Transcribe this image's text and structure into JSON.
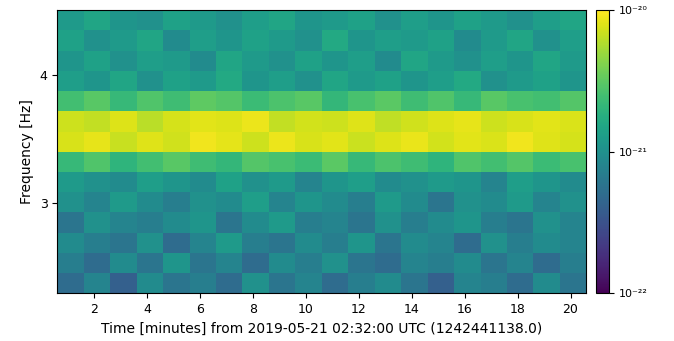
{
  "chart_data": {
    "type": "heatmap",
    "x_label": "Time [minutes] from 2019-05-21 02:32:00 UTC (1242441138.0)",
    "y_label": "Frequency [Hz]",
    "xlim": [
      0.6,
      20.6
    ],
    "xticks": [
      2,
      4,
      6,
      8,
      10,
      12,
      14,
      16,
      18,
      20
    ],
    "ylim": [
      2.3,
      4.5
    ],
    "yticks": [
      3,
      4
    ],
    "x_edges": [
      0.6,
      1.6,
      2.6,
      3.6,
      4.6,
      5.6,
      6.6,
      7.6,
      8.6,
      9.6,
      10.6,
      11.6,
      12.6,
      13.6,
      14.6,
      15.6,
      16.6,
      17.6,
      18.6,
      19.6,
      20.6
    ],
    "y_edges": [
      2.3,
      2.457,
      2.614,
      2.771,
      2.929,
      3.086,
      3.243,
      3.4,
      3.557,
      3.714,
      3.871,
      4.029,
      4.186,
      4.343,
      4.5
    ],
    "cells": [
      [
        5e-22,
        8e-22,
        4e-22,
        9e-22,
        6e-22,
        7e-22,
        5e-22,
        1e-21,
        6e-22,
        8e-22,
        5e-22,
        7e-22,
        9e-22,
        6e-22,
        4e-22,
        8e-22,
        7e-22,
        5e-22,
        9e-22,
        6e-22
      ],
      [
        7e-22,
        5e-22,
        9e-22,
        6e-22,
        1.1e-21,
        6e-22,
        8e-22,
        5e-22,
        9e-22,
        7e-22,
        1e-21,
        6e-22,
        5e-22,
        8e-22,
        7e-22,
        9e-22,
        6e-22,
        8e-22,
        5e-22,
        7e-22
      ],
      [
        9e-22,
        7e-22,
        6e-22,
        1e-21,
        5e-22,
        8e-22,
        1.2e-21,
        7e-22,
        6e-22,
        9e-22,
        7e-22,
        1.1e-21,
        6e-22,
        9e-22,
        8e-22,
        5e-22,
        1e-21,
        7e-22,
        9e-22,
        8e-22
      ],
      [
        6e-22,
        1e-21,
        8e-22,
        7e-22,
        9e-22,
        1.1e-21,
        6e-22,
        9e-22,
        1.2e-21,
        7e-22,
        8e-22,
        6e-22,
        1e-21,
        7e-22,
        9e-22,
        1.1e-21,
        7e-22,
        6e-22,
        1e-21,
        8e-22
      ],
      [
        1e-21,
        8e-22,
        1.2e-21,
        9e-22,
        7e-22,
        1e-21,
        9e-22,
        1.3e-21,
        8e-22,
        1.1e-21,
        9e-22,
        7e-22,
        1.2e-21,
        9e-22,
        6e-22,
        1e-21,
        9e-22,
        1.2e-21,
        8e-22,
        1e-21
      ],
      [
        1.2e-21,
        1e-21,
        9e-22,
        1.3e-21,
        1.1e-21,
        9e-22,
        1.4e-21,
        1e-21,
        1.2e-21,
        8e-22,
        1.1e-21,
        1.3e-21,
        9e-22,
        1e-21,
        1.2e-21,
        1.1e-21,
        8e-22,
        1.3e-21,
        1.1e-21,
        9e-22
      ],
      [
        2.2e-21,
        2.8e-21,
        2e-21,
        2.5e-21,
        3e-21,
        2.4e-21,
        2.1e-21,
        2.9e-21,
        2.6e-21,
        2.3e-21,
        3.1e-21,
        2.2e-21,
        2.7e-21,
        2.4e-21,
        2e-21,
        2.8e-21,
        2.5e-21,
        2.9e-21,
        2.3e-21,
        2.6e-21
      ],
      [
        7.5e-21,
        8.5e-21,
        6.8e-21,
        8e-21,
        7.2e-21,
        9e-21,
        8.3e-21,
        7e-21,
        8.8e-21,
        7.6e-21,
        8.1e-21,
        6.9e-21,
        7.8e-21,
        8.6e-21,
        7.3e-21,
        8.2e-21,
        7.7e-21,
        9.1e-21,
        8e-21,
        7.4e-21
      ],
      [
        7e-21,
        6.5e-21,
        7.8e-21,
        6.2e-21,
        7.4e-21,
        8.1e-21,
        7.9e-21,
        8.7e-21,
        6.6e-21,
        7.3e-21,
        7e-21,
        8e-21,
        6.4e-21,
        7.2e-21,
        7.9e-21,
        8.5e-21,
        7.1e-21,
        7.6e-21,
        8.2e-21,
        7.7e-21
      ],
      [
        2.5e-21,
        3e-21,
        2.2e-21,
        2.8e-21,
        2.4e-21,
        3.2e-21,
        2.9e-21,
        2.3e-21,
        2.7e-21,
        3e-21,
        2.1e-21,
        2.6e-21,
        3.1e-21,
        2.4e-21,
        2.8e-21,
        2.2e-21,
        3e-21,
        2.6e-21,
        2.5e-21,
        2.9e-21
      ],
      [
        1.3e-21,
        1.1e-21,
        1.5e-21,
        1e-21,
        1.4e-21,
        1.2e-21,
        1.6e-21,
        1.1e-21,
        1.3e-21,
        1e-21,
        1.5e-21,
        1.2e-21,
        1.4e-21,
        1.1e-21,
        1.3e-21,
        1.6e-21,
        1e-21,
        1.2e-21,
        1.4e-21,
        1.1e-21
      ],
      [
        1.1e-21,
        1.4e-21,
        1e-21,
        1.3e-21,
        1.2e-21,
        9e-22,
        1.5e-21,
        1.2e-21,
        1e-21,
        1.4e-21,
        1.1e-21,
        1.3e-21,
        9e-22,
        1.5e-21,
        1.2e-21,
        1e-21,
        1.3e-21,
        1.1e-21,
        1.5e-21,
        1.2e-21
      ],
      [
        1.4e-21,
        1e-21,
        1.2e-21,
        1.5e-21,
        9e-22,
        1.3e-21,
        1.1e-21,
        1.4e-21,
        1.2e-21,
        1e-21,
        1.6e-21,
        1.1e-21,
        1.3e-21,
        1.2e-21,
        1.4e-21,
        9e-22,
        1.2e-21,
        1.5e-21,
        1e-21,
        1.3e-21
      ],
      [
        1.2e-21,
        1.5e-21,
        1.1e-21,
        1e-21,
        1.4e-21,
        1.2e-21,
        1e-21,
        1.3e-21,
        1.5e-21,
        1.1e-21,
        1.2e-21,
        1.4e-21,
        1e-21,
        1.3e-21,
        1.1e-21,
        1.4e-21,
        1.2e-21,
        1e-21,
        1.3e-21,
        1.5e-21
      ]
    ],
    "colorbar_lim": [
      1e-22,
      1e-20
    ],
    "colorbar_ticks": [
      {
        "value": 1e-22,
        "label": "10⁻²²"
      },
      {
        "value": 1e-21,
        "label": "10⁻²¹"
      },
      {
        "value": 1e-20,
        "label": "10⁻²⁰"
      }
    ],
    "colorbar_log": true,
    "grid": false
  }
}
